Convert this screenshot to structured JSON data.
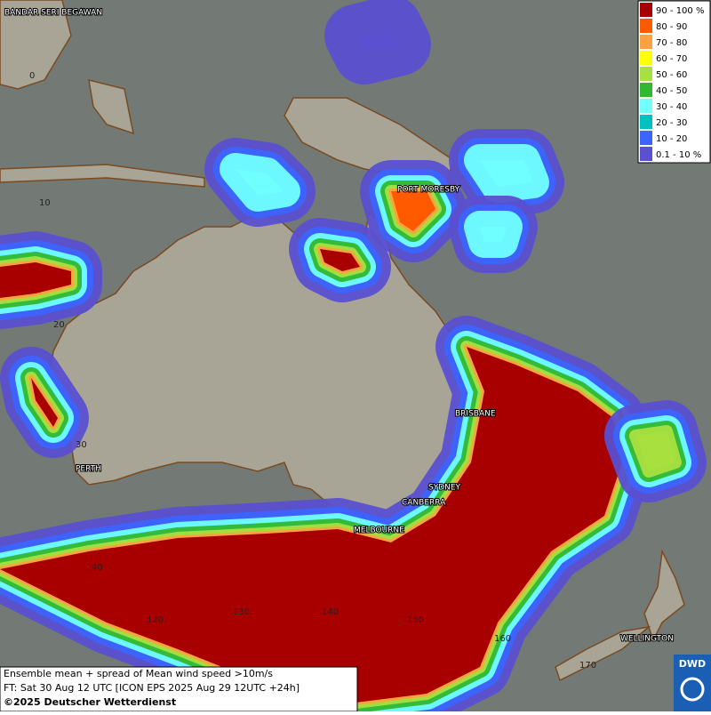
{
  "map": {
    "place_labels": [
      "BANDAR SERI BEGAWAN",
      "PORT MORESBY",
      "BRISBANE",
      "SYDNEY",
      "CANBERRA",
      "MELBOURNE",
      "PERTH",
      "WELLINGTON"
    ],
    "grid_labels": [
      "0",
      "10",
      "20",
      "30",
      "40",
      "120",
      "130",
      "140",
      "150",
      "160",
      "170"
    ]
  },
  "legend": {
    "items": [
      {
        "label": "90 - 100 %",
        "color": "#a80000"
      },
      {
        "label": "80 - 90",
        "color": "#ff5a00"
      },
      {
        "label": "70 - 80",
        "color": "#ffa040"
      },
      {
        "label": "60 - 70",
        "color": "#ffff00"
      },
      {
        "label": "50 - 60",
        "color": "#a8e040"
      },
      {
        "label": "40 - 50",
        "color": "#30b830"
      },
      {
        "label": "30 - 40",
        "color": "#70ffff"
      },
      {
        "label": "20 - 30",
        "color": "#00c0c0"
      },
      {
        "label": "10 - 20",
        "color": "#3c64ff"
      },
      {
        "label": "0.1 - 10 %",
        "color": "#5a50d0"
      }
    ]
  },
  "caption": {
    "line1": "Ensemble mean + spread of Mean wind speed >10m/s",
    "line2": "FT: Sat 30 Aug 12 UTC [ICON EPS 2025 Aug 29 12UTC +24h]",
    "copyright": "©2025 Deutscher Wetterdienst"
  },
  "logo": "DWD"
}
